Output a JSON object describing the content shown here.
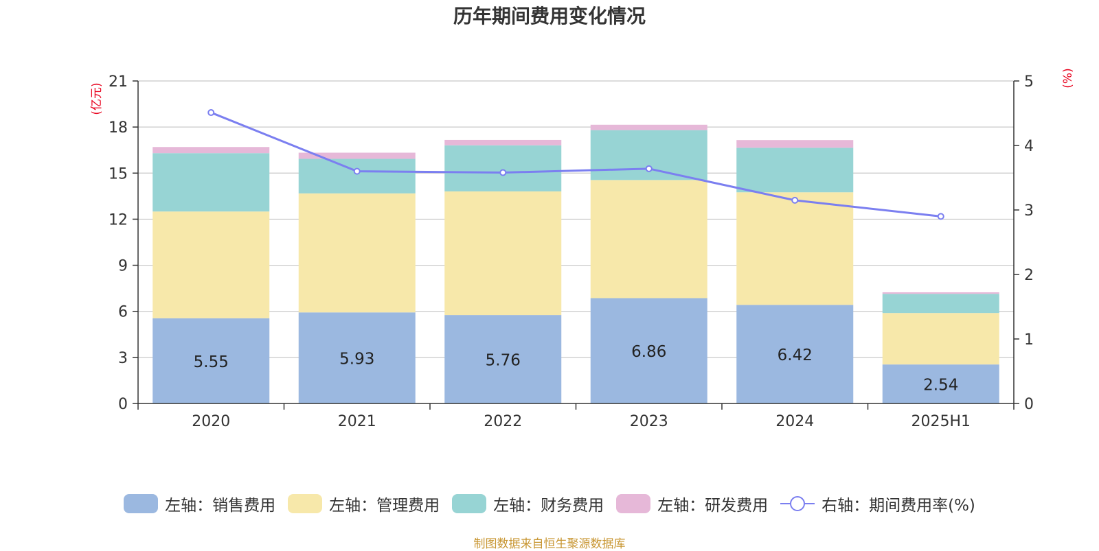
{
  "chart_data": {
    "type": "bar",
    "title": "历年期间费用变化情况",
    "categories": [
      "2020",
      "2021",
      "2022",
      "2023",
      "2024",
      "2025H1"
    ],
    "y_left": {
      "unit_label": "(亿元)",
      "ylim": [
        0,
        21
      ],
      "ticks": [
        0,
        3,
        6,
        9,
        12,
        15,
        18,
        21
      ]
    },
    "y_right": {
      "unit_label": "(%)",
      "ylim": [
        0,
        5
      ],
      "ticks": [
        0,
        1,
        2,
        3,
        4,
        5
      ]
    },
    "grid": true,
    "legend_position": "bottom",
    "series": [
      {
        "name": "左轴：销售费用",
        "kind": "bar",
        "axis": "left",
        "color": "#9bb8e0",
        "values": [
          5.55,
          5.93,
          5.76,
          6.86,
          6.42,
          2.54
        ],
        "show_labels": true
      },
      {
        "name": "左轴：管理费用",
        "kind": "bar",
        "axis": "left",
        "color": "#f7e8aa",
        "values": [
          6.95,
          7.75,
          8.05,
          7.69,
          7.33,
          3.35
        ]
      },
      {
        "name": "左轴：财务费用",
        "kind": "bar",
        "axis": "left",
        "color": "#97d4d4",
        "values": [
          3.8,
          2.25,
          3.0,
          3.25,
          2.9,
          1.25
        ]
      },
      {
        "name": "左轴：研发费用",
        "kind": "bar",
        "axis": "left",
        "color": "#e6b8d8",
        "values": [
          0.4,
          0.4,
          0.35,
          0.35,
          0.5,
          0.1
        ]
      },
      {
        "name": "右轴：期间费用率(%)",
        "kind": "line",
        "axis": "right",
        "color": "#7b7ff0",
        "values": [
          4.51,
          3.6,
          3.58,
          3.64,
          3.15,
          2.9
        ]
      }
    ]
  },
  "source_note": "制图数据来自恒生聚源数据库"
}
